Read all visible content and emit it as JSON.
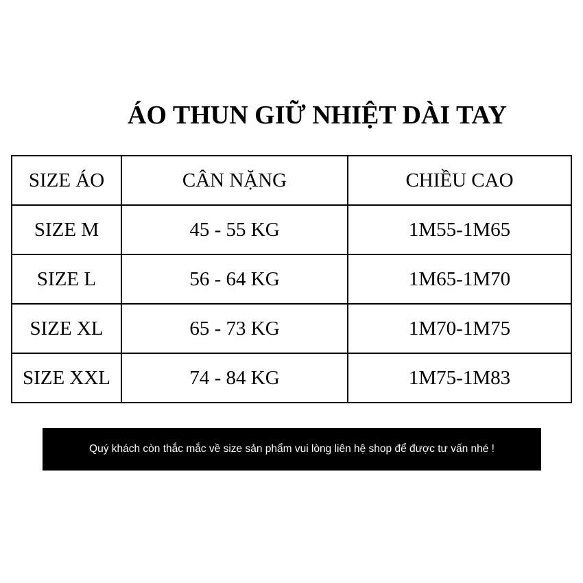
{
  "title": "ÁO THUN GIỮ NHIỆT DÀI TAY",
  "table": {
    "header": [
      "SIZE ÁO",
      "CÂN NẶNG",
      "CHIỀU CAO"
    ],
    "rows": [
      [
        "SIZE M",
        "45 - 55 KG",
        "1M55-1M65"
      ],
      [
        "SIZE L",
        "56 - 64 KG",
        "1M65-1M70"
      ],
      [
        "SIZE XL",
        "65 - 73 KG",
        "1M70-1M75"
      ],
      [
        "SIZE XXL",
        "74 - 84 KG",
        "1M75-1M83"
      ]
    ]
  },
  "note": "Quý khách còn thắc mắc về size sản phẩm vui lòng liên hệ shop để được tư vấn nhé !"
}
